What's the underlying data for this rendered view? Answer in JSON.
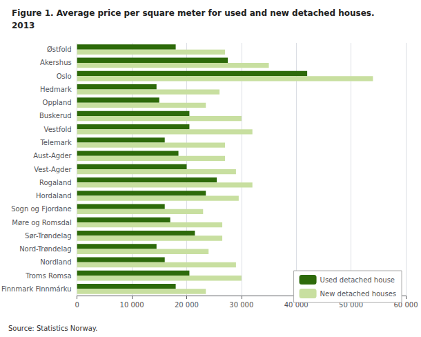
{
  "chart_data": {
    "type": "bar",
    "orientation": "horizontal",
    "title": "Figure 1. Average price per square meter for used and new detached houses.",
    "subtitle": "2013",
    "annotations": [
      "Source: Statistics Norway."
    ],
    "categories": [
      "Østfold",
      "Akershus",
      "Oslo",
      "Hedmark",
      "Oppland",
      "Buskerud",
      "Vestfold",
      "Telemark",
      "Aust-Agder",
      "Vest-Agder",
      "Rogaland",
      "Hordaland",
      "Sogn og Fjordane",
      "Møre og Romsdal",
      "Sør-Trøndelag",
      "Nord-Trøndelag",
      "Nordland",
      "Troms Romsa",
      "Finnmark Finnmárku"
    ],
    "series": [
      {
        "name": "Used detached house",
        "color": "#2d6a0a",
        "values": [
          18000,
          27500,
          42000,
          14500,
          15000,
          20500,
          20500,
          16000,
          18500,
          20000,
          25500,
          23500,
          16000,
          17000,
          21500,
          14500,
          16000,
          20500,
          18000
        ]
      },
      {
        "name": "New detached houses",
        "color": "#c8dfa0",
        "values": [
          27000,
          35000,
          54000,
          26000,
          23500,
          30000,
          32000,
          27000,
          27000,
          29000,
          32000,
          29500,
          23000,
          26500,
          26500,
          24000,
          29000,
          30000,
          23500
        ]
      }
    ],
    "xlim": [
      0,
      60000
    ],
    "xticks": [
      0,
      {
        "value": 10000,
        "label": "10 000"
      },
      {
        "value": 20000,
        "label": "20 000"
      },
      {
        "value": 30000,
        "label": "30 000"
      },
      {
        "value": 40000,
        "label": "40 000"
      },
      {
        "value": 50000,
        "label": "50 000"
      },
      {
        "value": 60000,
        "label": "60 000"
      }
    ],
    "grid": true,
    "legend": "lower right"
  }
}
